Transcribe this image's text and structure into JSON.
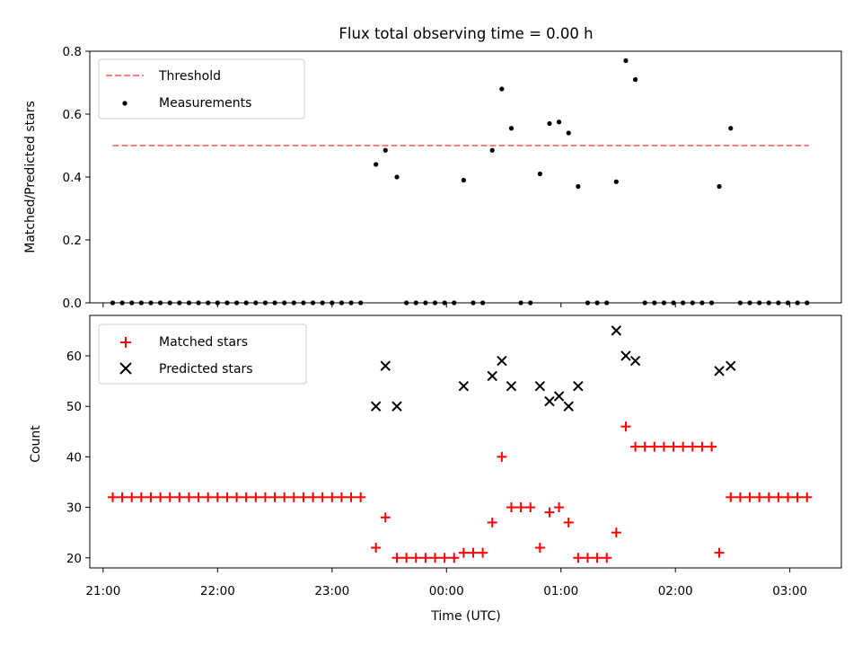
{
  "figure": {
    "title": "Flux total observing time = 0.00 h",
    "xlabel": "Time (UTC)"
  },
  "colors": {
    "threshold": "#ff7f7f",
    "measurements": "#000000",
    "matched": "#ff0000",
    "predicted": "#000000"
  },
  "chart_data": [
    {
      "type": "scatter",
      "ylabel": "Matched/Predicted stars",
      "xlim": [
        "20:53",
        "03:27"
      ],
      "ylim": [
        0,
        0.8
      ],
      "yticks": [
        "0.0",
        "0.2",
        "0.4",
        "0.6",
        "0.8"
      ],
      "legend": "top-left",
      "threshold": {
        "name": "Threshold",
        "value": 0.5,
        "x": [
          "21:05",
          "03:10"
        ]
      },
      "series": [
        {
          "name": "Measurements",
          "marker": "dot",
          "points": [
            [
              "21:05",
              0
            ],
            [
              "21:10",
              0
            ],
            [
              "21:15",
              0
            ],
            [
              "21:20",
              0
            ],
            [
              "21:25",
              0
            ],
            [
              "21:30",
              0
            ],
            [
              "21:35",
              0
            ],
            [
              "21:40",
              0
            ],
            [
              "21:45",
              0
            ],
            [
              "21:50",
              0
            ],
            [
              "21:55",
              0
            ],
            [
              "22:00",
              0
            ],
            [
              "22:05",
              0
            ],
            [
              "22:10",
              0
            ],
            [
              "22:15",
              0
            ],
            [
              "22:20",
              0
            ],
            [
              "22:25",
              0
            ],
            [
              "22:30",
              0
            ],
            [
              "22:35",
              0
            ],
            [
              "22:40",
              0
            ],
            [
              "22:45",
              0
            ],
            [
              "22:50",
              0
            ],
            [
              "22:55",
              0
            ],
            [
              "23:00",
              0
            ],
            [
              "23:05",
              0
            ],
            [
              "23:10",
              0
            ],
            [
              "23:15",
              0
            ],
            [
              "23:23",
              0.44
            ],
            [
              "23:28",
              0.485
            ],
            [
              "23:34",
              0.4
            ],
            [
              "23:39",
              0
            ],
            [
              "23:44",
              0
            ],
            [
              "23:49",
              0
            ],
            [
              "23:54",
              0
            ],
            [
              "23:59",
              0
            ],
            [
              "00:04",
              0
            ],
            [
              "00:09",
              0.39
            ],
            [
              "00:14",
              0
            ],
            [
              "00:19",
              0
            ],
            [
              "00:24",
              0.485
            ],
            [
              "00:29",
              0.68
            ],
            [
              "00:34",
              0.555
            ],
            [
              "00:39",
              0
            ],
            [
              "00:44",
              0
            ],
            [
              "00:49",
              0.41
            ],
            [
              "00:54",
              0.57
            ],
            [
              "00:59",
              0.575
            ],
            [
              "01:04",
              0.54
            ],
            [
              "01:09",
              0.37
            ],
            [
              "01:14",
              0
            ],
            [
              "01:19",
              0
            ],
            [
              "01:24",
              0
            ],
            [
              "01:29",
              0.385
            ],
            [
              "01:34",
              0.77
            ],
            [
              "01:39",
              0.71
            ],
            [
              "01:44",
              0
            ],
            [
              "01:49",
              0
            ],
            [
              "01:54",
              0
            ],
            [
              "01:59",
              0
            ],
            [
              "02:04",
              0
            ],
            [
              "02:09",
              0
            ],
            [
              "02:14",
              0
            ],
            [
              "02:19",
              0
            ],
            [
              "02:23",
              0.37
            ],
            [
              "02:29",
              0.555
            ],
            [
              "02:34",
              0
            ],
            [
              "02:39",
              0
            ],
            [
              "02:44",
              0
            ],
            [
              "02:49",
              0
            ],
            [
              "02:54",
              0
            ],
            [
              "02:59",
              0
            ],
            [
              "03:04",
              0
            ],
            [
              "03:09",
              0
            ]
          ]
        }
      ]
    },
    {
      "type": "scatter",
      "ylabel": "Count",
      "xlim": [
        "20:53",
        "03:27"
      ],
      "ylim": [
        18,
        68
      ],
      "yticks": [
        "20",
        "30",
        "40",
        "50",
        "60"
      ],
      "xticks": [
        "21:00",
        "22:00",
        "23:00",
        "00:00",
        "01:00",
        "02:00",
        "03:00"
      ],
      "legend": "top-left",
      "series": [
        {
          "name": "Matched stars",
          "marker": "plus",
          "points": [
            [
              "21:05",
              32
            ],
            [
              "21:10",
              32
            ],
            [
              "21:15",
              32
            ],
            [
              "21:20",
              32
            ],
            [
              "21:25",
              32
            ],
            [
              "21:30",
              32
            ],
            [
              "21:35",
              32
            ],
            [
              "21:40",
              32
            ],
            [
              "21:45",
              32
            ],
            [
              "21:50",
              32
            ],
            [
              "21:55",
              32
            ],
            [
              "22:00",
              32
            ],
            [
              "22:05",
              32
            ],
            [
              "22:10",
              32
            ],
            [
              "22:15",
              32
            ],
            [
              "22:20",
              32
            ],
            [
              "22:25",
              32
            ],
            [
              "22:30",
              32
            ],
            [
              "22:35",
              32
            ],
            [
              "22:40",
              32
            ],
            [
              "22:45",
              32
            ],
            [
              "22:50",
              32
            ],
            [
              "22:55",
              32
            ],
            [
              "23:00",
              32
            ],
            [
              "23:05",
              32
            ],
            [
              "23:10",
              32
            ],
            [
              "23:15",
              32
            ],
            [
              "23:23",
              22
            ],
            [
              "23:28",
              28
            ],
            [
              "23:34",
              20
            ],
            [
              "23:39",
              20
            ],
            [
              "23:44",
              20
            ],
            [
              "23:49",
              20
            ],
            [
              "23:54",
              20
            ],
            [
              "23:59",
              20
            ],
            [
              "00:04",
              20
            ],
            [
              "00:09",
              21
            ],
            [
              "00:14",
              21
            ],
            [
              "00:19",
              21
            ],
            [
              "00:24",
              27
            ],
            [
              "00:29",
              40
            ],
            [
              "00:34",
              30
            ],
            [
              "00:39",
              30
            ],
            [
              "00:44",
              30
            ],
            [
              "00:49",
              22
            ],
            [
              "00:54",
              29
            ],
            [
              "00:59",
              30
            ],
            [
              "01:04",
              27
            ],
            [
              "01:09",
              20
            ],
            [
              "01:14",
              20
            ],
            [
              "01:19",
              20
            ],
            [
              "01:24",
              20
            ],
            [
              "01:29",
              25
            ],
            [
              "01:34",
              46
            ],
            [
              "01:39",
              42
            ],
            [
              "01:44",
              42
            ],
            [
              "01:49",
              42
            ],
            [
              "01:54",
              42
            ],
            [
              "01:59",
              42
            ],
            [
              "02:04",
              42
            ],
            [
              "02:09",
              42
            ],
            [
              "02:14",
              42
            ],
            [
              "02:19",
              42
            ],
            [
              "02:23",
              21
            ],
            [
              "02:29",
              32
            ],
            [
              "02:34",
              32
            ],
            [
              "02:39",
              32
            ],
            [
              "02:44",
              32
            ],
            [
              "02:49",
              32
            ],
            [
              "02:54",
              32
            ],
            [
              "02:59",
              32
            ],
            [
              "03:04",
              32
            ],
            [
              "03:09",
              32
            ]
          ]
        },
        {
          "name": "Predicted stars",
          "marker": "x",
          "points": [
            [
              "23:23",
              50
            ],
            [
              "23:28",
              58
            ],
            [
              "23:34",
              50
            ],
            [
              "00:09",
              54
            ],
            [
              "00:24",
              56
            ],
            [
              "00:29",
              59
            ],
            [
              "00:34",
              54
            ],
            [
              "00:49",
              54
            ],
            [
              "00:54",
              51
            ],
            [
              "00:59",
              52
            ],
            [
              "01:04",
              50
            ],
            [
              "01:09",
              54
            ],
            [
              "01:29",
              65
            ],
            [
              "01:34",
              60
            ],
            [
              "01:39",
              59
            ],
            [
              "02:23",
              57
            ],
            [
              "02:29",
              58
            ]
          ]
        }
      ]
    }
  ]
}
